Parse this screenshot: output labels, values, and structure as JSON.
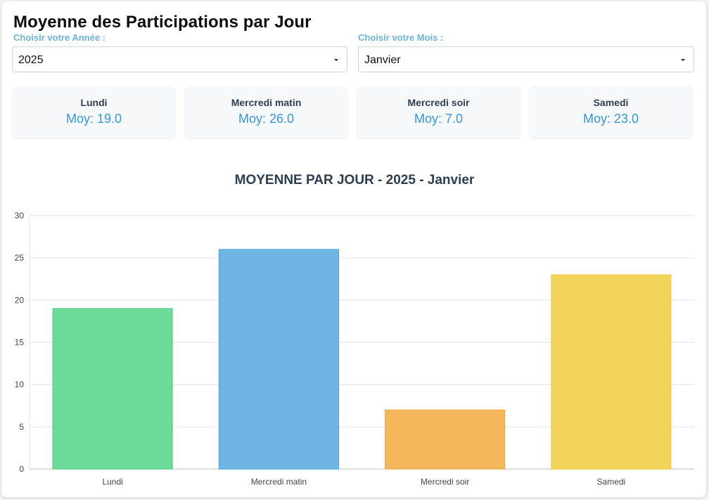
{
  "header": {
    "title": "Moyenne des Participations par Jour"
  },
  "filters": {
    "year_label": "Choisir votre Année :",
    "year_value": "2025",
    "month_label": "Choisir votre Mois :",
    "month_value": "Janvier"
  },
  "cards": [
    {
      "label": "Lundi",
      "value": "Moy: 19.0"
    },
    {
      "label": "Mercredi matin",
      "value": "Moy: 26.0"
    },
    {
      "label": "Mercredi soir",
      "value": "Moy: 7.0"
    },
    {
      "label": "Samedi",
      "value": "Moy: 23.0"
    }
  ],
  "chart_data": {
    "type": "bar",
    "title": "MOYENNE PAR JOUR - 2025 - Janvier",
    "categories": [
      "Lundi",
      "Mercredi matin",
      "Mercredi soir",
      "Samedi"
    ],
    "values": [
      19,
      26,
      7,
      23
    ],
    "colors": [
      "#6cdb9a",
      "#6fb5e4",
      "#f4b75c",
      "#f2d45a"
    ],
    "border_colors": [
      "#4ecb7f",
      "#4a9fd8",
      "#eea63f",
      "#eec73f"
    ],
    "ylim": [
      0,
      30
    ],
    "yticks": [
      0,
      5,
      10,
      15,
      20,
      25,
      30
    ],
    "grid": true,
    "xlabel": "",
    "ylabel": ""
  }
}
